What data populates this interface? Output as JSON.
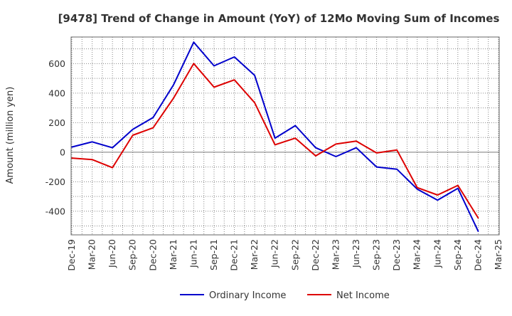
{
  "chart_data": {
    "type": "line",
    "title": "[9478]  Trend of Change in Amount (YoY) of 12Mo Moving Sum of Incomes",
    "xlabel": "",
    "ylabel": "Amount (million yen)",
    "categories": [
      "Dec-19",
      "Mar-20",
      "Jun-20",
      "Sep-20",
      "Dec-20",
      "Mar-21",
      "Jun-21",
      "Sep-21",
      "Dec-21",
      "Mar-22",
      "Jun-22",
      "Sep-22",
      "Dec-22",
      "Mar-23",
      "Jun-23",
      "Sep-23",
      "Dec-23",
      "Mar-24",
      "Jun-24",
      "Sep-24",
      "Dec-24",
      "Mar-25"
    ],
    "ylim": [
      -560,
      780
    ],
    "yticks": [
      -400,
      -200,
      0,
      200,
      400,
      600
    ],
    "ytick_labels": [
      "-400",
      "-200",
      "0",
      "200",
      "400",
      "600"
    ],
    "grid": true,
    "legend_position": "bottom-center",
    "series": [
      {
        "name": "Ordinary Income",
        "color": "#0000cc",
        "values": [
          35,
          70,
          30,
          155,
          235,
          455,
          745,
          585,
          645,
          520,
          95,
          180,
          30,
          -30,
          30,
          -100,
          -115,
          -250,
          -325,
          -245,
          -535,
          null
        ]
      },
      {
        "name": "Net Income",
        "color": "#dd0000",
        "values": [
          -40,
          -50,
          -105,
          115,
          165,
          365,
          600,
          440,
          490,
          335,
          50,
          95,
          -25,
          55,
          75,
          -5,
          15,
          -240,
          -290,
          -225,
          -445,
          null
        ]
      }
    ]
  }
}
